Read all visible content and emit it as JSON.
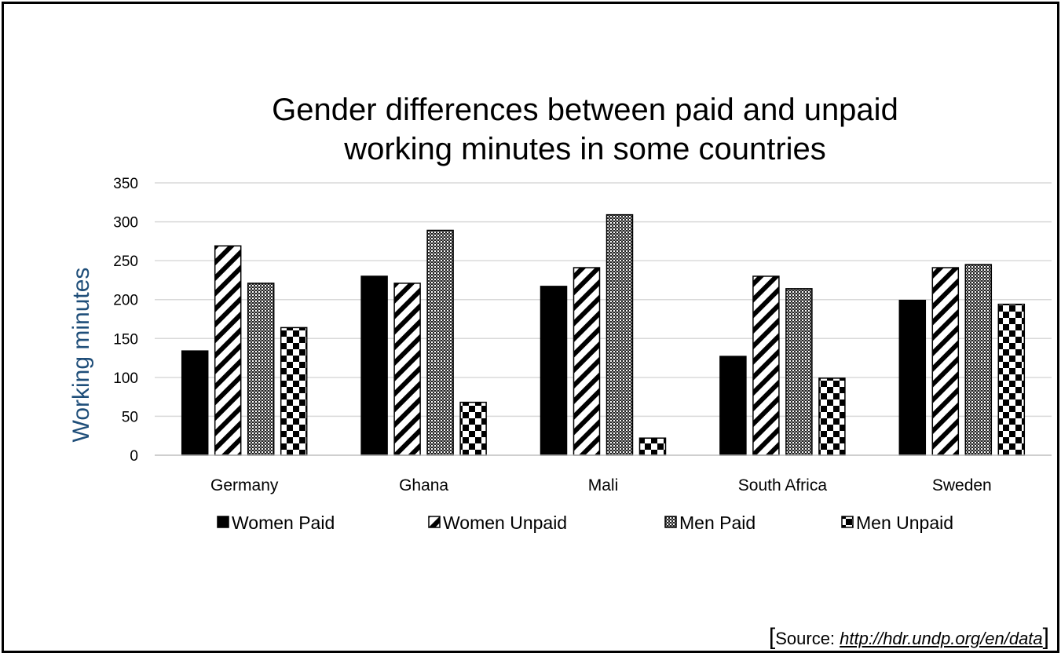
{
  "chart_data": {
    "type": "bar",
    "title_lines": [
      "Gender differences between paid and unpaid",
      "working minutes in some countries"
    ],
    "ylabel": "Working minutes",
    "xlabel": "",
    "ylim": [
      0,
      350
    ],
    "yticks": [
      0,
      50,
      100,
      150,
      200,
      250,
      300,
      350
    ],
    "grid": true,
    "legend_position": "bottom",
    "categories": [
      "Germany",
      "Ghana",
      "Mali",
      "South Africa",
      "Sweden"
    ],
    "series": [
      {
        "name": "Women Paid",
        "pattern": "solid",
        "values": [
          134,
          230,
          217,
          127,
          199
        ]
      },
      {
        "name": "Women Unpaid",
        "pattern": "diagonal-stripes",
        "values": [
          269,
          221,
          241,
          230,
          241
        ]
      },
      {
        "name": "Men Paid",
        "pattern": "fine-checker",
        "values": [
          221,
          289,
          309,
          214,
          245
        ]
      },
      {
        "name": "Men Unpaid",
        "pattern": "checkerboard",
        "values": [
          164,
          68,
          22,
          99,
          194
        ]
      }
    ]
  },
  "colors": {
    "axis_label": "#1f4e79",
    "bars": "#000000",
    "grid": "#d9d9d9"
  },
  "source": {
    "open_bracket": "[",
    "prefix": "Source: ",
    "link": "http://hdr.undp.org/en/data",
    "close_bracket": "]"
  }
}
